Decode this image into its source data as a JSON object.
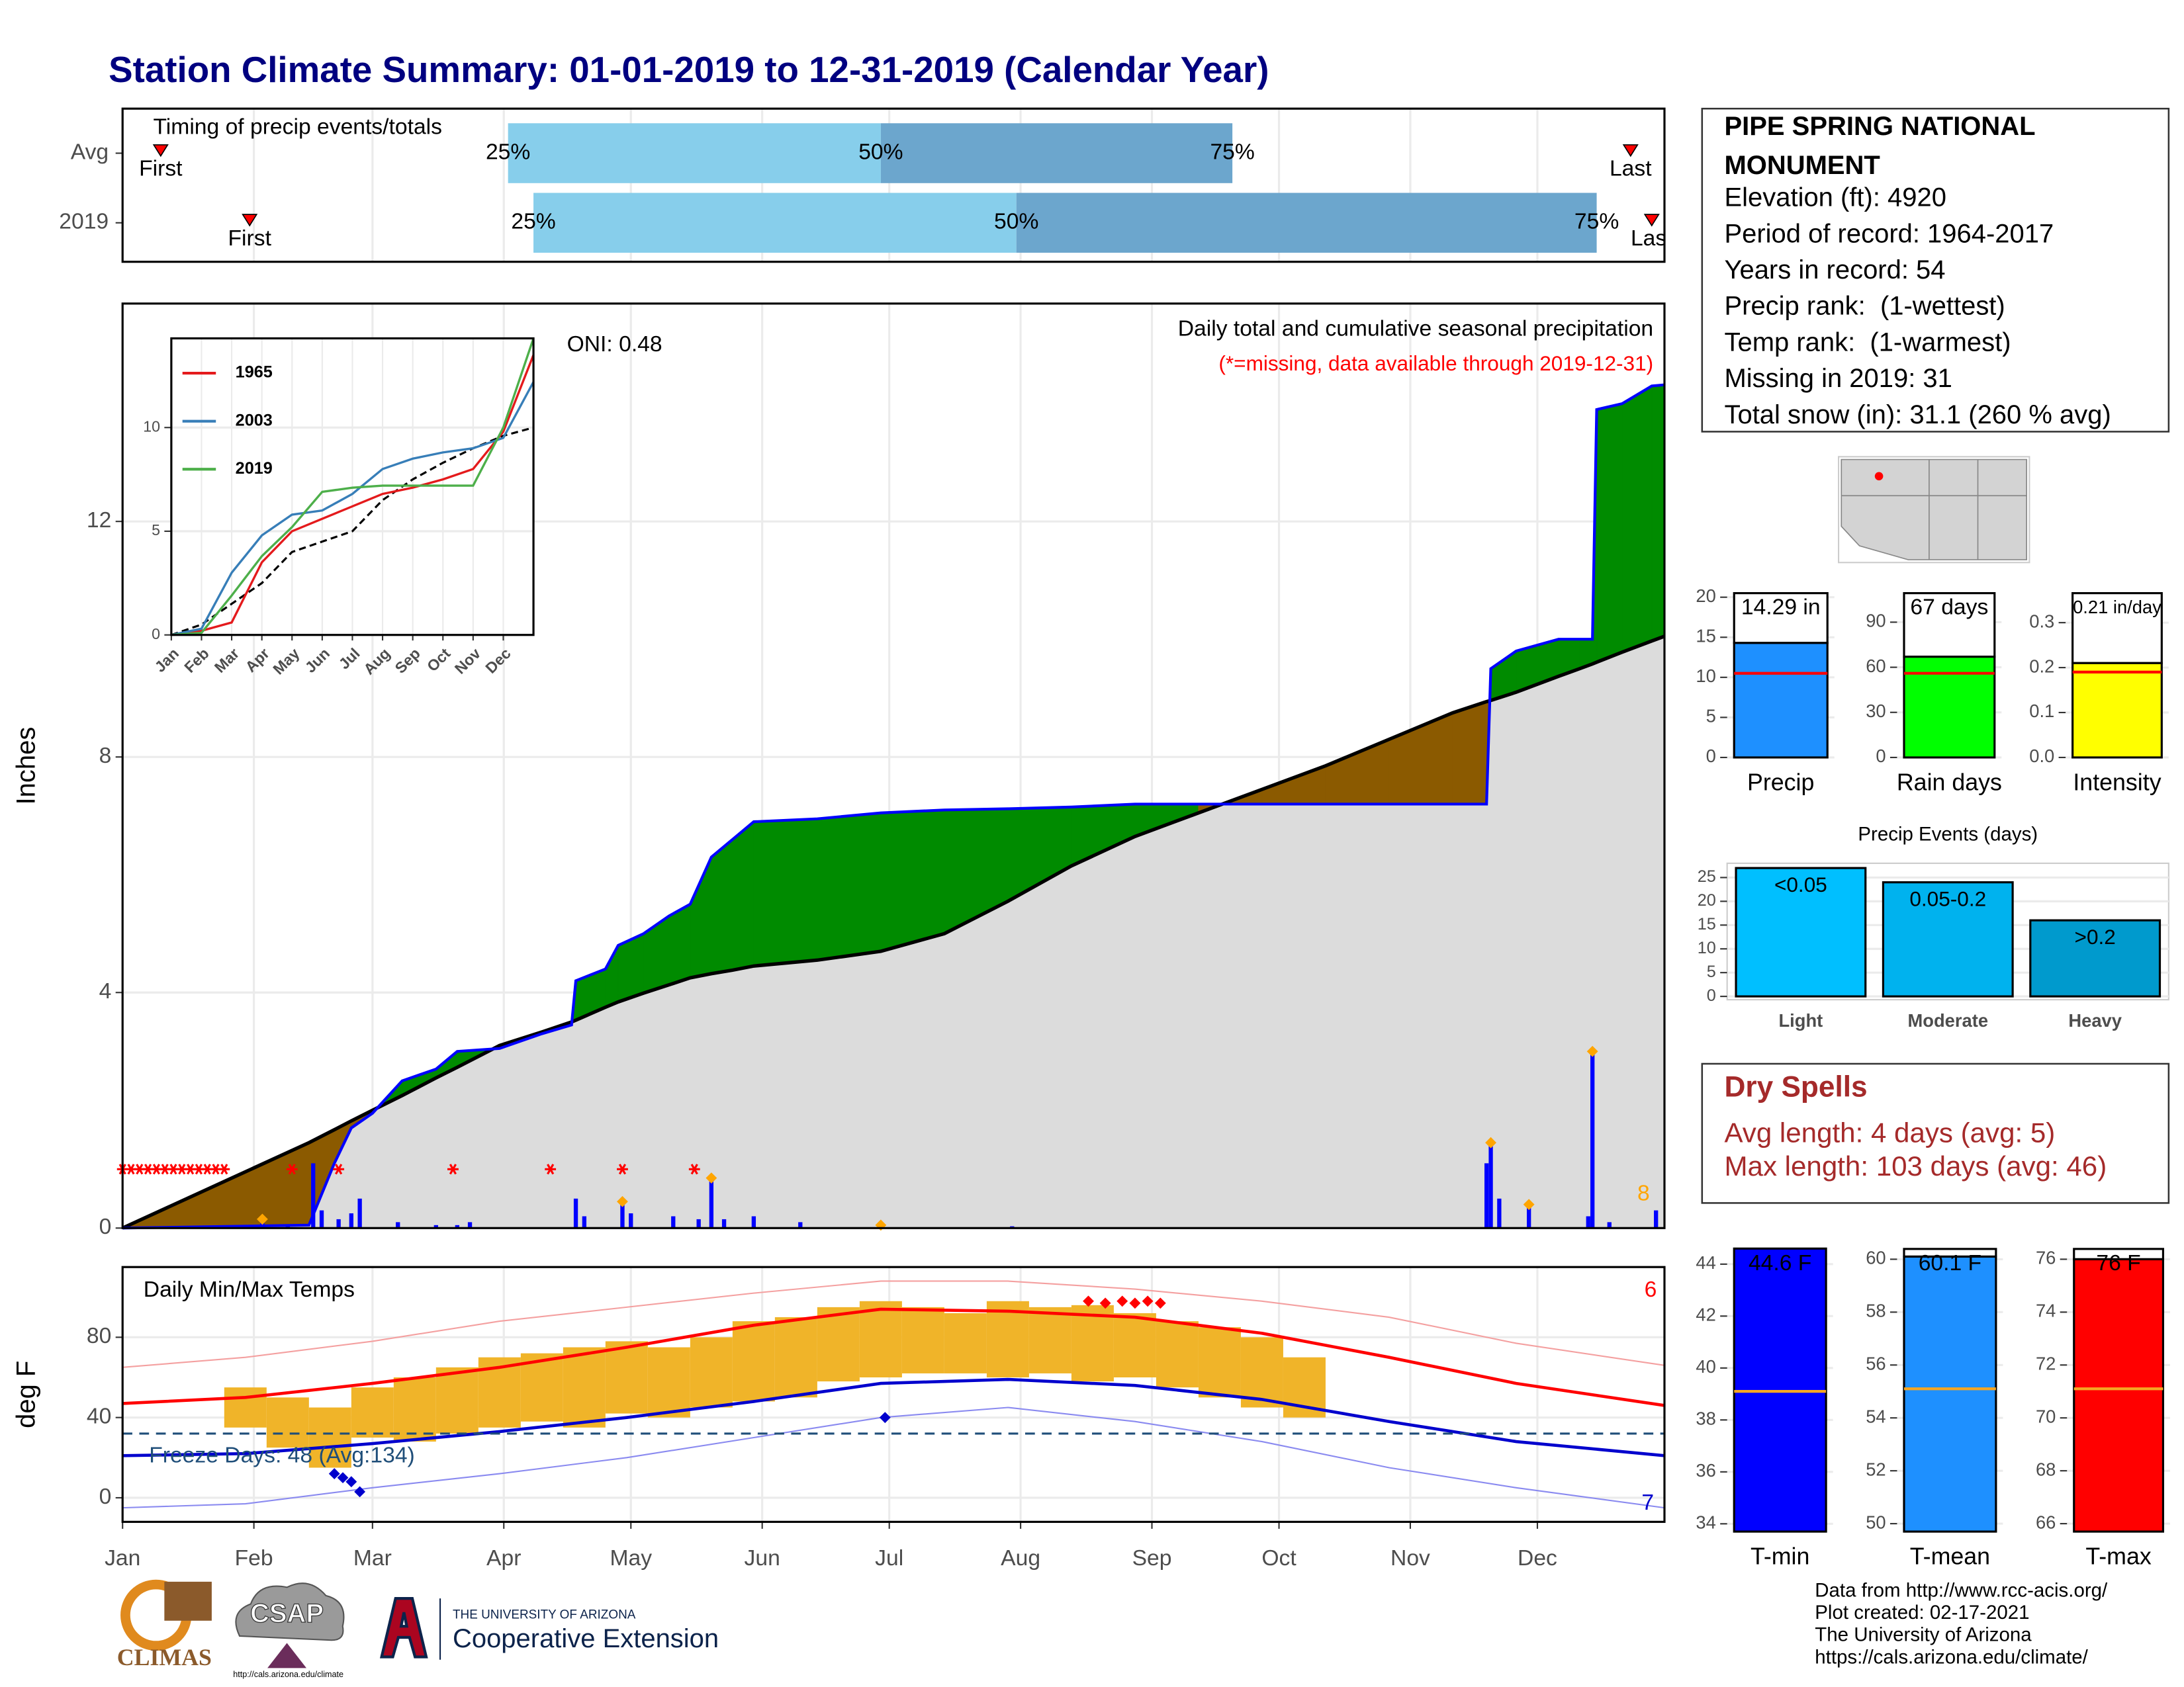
{
  "title": "Station Climate Summary: 01-01-2019 to 12-31-2019 (Calendar Year)",
  "chart_data": [
    {
      "type": "timing",
      "title": "Timing of precip events/totals",
      "categories": [
        "Avg",
        "2019"
      ],
      "labels": {
        "first": "First",
        "last": "Last",
        "q25": "25%",
        "q50": "50%",
        "q75": "75%"
      },
      "rows": [
        {
          "first": 10,
          "q25": 92,
          "q50": 180,
          "q75": 263,
          "last": 357
        },
        {
          "first": 31,
          "q25": 98,
          "q50": 212,
          "q75": 349,
          "last": 362
        }
      ],
      "colors": [
        "#87ceeb",
        "#6ca6cd"
      ],
      "marker_color": "#ff0000",
      "xlim": [
        1,
        365
      ]
    },
    {
      "type": "precip",
      "subtitle": "Daily total and cumulative seasonal precipitation",
      "note": "(*=missing, data available through 2019-12-31)",
      "oni": "ONI: 0.48",
      "annotation": "8",
      "ylabel": "Inches",
      "xlim": [
        1,
        365
      ],
      "ylim": [
        0,
        15.7
      ],
      "yticks": [
        0,
        4,
        8,
        12
      ],
      "grid": true,
      "x": [
        1,
        45,
        51,
        55,
        60,
        67,
        75,
        80,
        90,
        100,
        107,
        108,
        115,
        118,
        124,
        130,
        135,
        140,
        145,
        150,
        165,
        180,
        195,
        210,
        225,
        240,
        255,
        270,
        285,
        300,
        315,
        323,
        324,
        330,
        340,
        345,
        348,
        349,
        355,
        362,
        365
      ],
      "series": [
        {
          "color": "#0000ff",
          "values": [
            0,
            0.05,
            1.1,
            1.7,
            1.95,
            2.5,
            2.7,
            3,
            3.05,
            3.3,
            3.45,
            4.2,
            4.4,
            4.8,
            5,
            5.3,
            5.5,
            6.3,
            6.6,
            6.9,
            6.95,
            7.05,
            7.1,
            7.12,
            7.15,
            7.2,
            7.2,
            7.2,
            7.2,
            7.2,
            7.2,
            7.2,
            9.5,
            9.8,
            10,
            10,
            10,
            13.9,
            14,
            14.3,
            14.32
          ]
        },
        {
          "color": "#000000",
          "fill_color": "#dcdcdc",
          "values": [
            0,
            1.45,
            1.67,
            1.82,
            2,
            2.25,
            2.55,
            2.73,
            3.1,
            3.33,
            3.5,
            3.53,
            3.75,
            3.84,
            3.99,
            4.13,
            4.25,
            4.32,
            4.38,
            4.45,
            4.55,
            4.7,
            5,
            5.55,
            6.15,
            6.65,
            7.05,
            7.45,
            7.85,
            8.3,
            8.75,
            8.94,
            8.96,
            9.1,
            9.37,
            9.5,
            9.58,
            9.61,
            9.78,
            9.97,
            10.05
          ]
        }
      ],
      "above_color": "#008b00",
      "below_color": "#8b5a00",
      "bars_x": [
        34,
        40,
        46,
        48,
        52,
        55,
        57,
        66,
        75,
        80,
        83,
        108,
        110,
        119,
        121,
        131,
        137,
        140,
        143,
        150,
        161,
        180,
        211,
        323,
        324,
        326,
        333,
        347,
        348,
        352,
        363
      ],
      "bars": [
        0.1,
        0.05,
        1.1,
        0.3,
        0.15,
        0.25,
        0.5,
        0.1,
        0.05,
        0.05,
        0.1,
        0.5,
        0.2,
        0.4,
        0.25,
        0.2,
        0.15,
        0.8,
        0.15,
        0.2,
        0.1,
        0.05,
        0.03,
        1.1,
        1.4,
        0.5,
        0.35,
        0.2,
        3,
        0.1,
        0.3
      ],
      "bar_color": "#0000ff",
      "snow_x": [
        34,
        119,
        140,
        180,
        324,
        333,
        348
      ],
      "snow_values": [
        0.15,
        0.45,
        0.85,
        0.05,
        1.45,
        0.4,
        3
      ],
      "snow_color": "#ffa500",
      "missing_x": [
        1,
        3,
        5,
        7,
        9,
        11,
        13,
        15,
        17,
        19,
        21,
        23,
        25,
        41,
        52,
        79,
        102,
        119,
        136
      ],
      "missing_values": [
        1,
        1,
        1,
        1,
        1,
        1,
        1,
        1,
        1,
        1,
        1,
        1,
        1,
        1,
        1,
        1,
        1,
        1,
        1
      ],
      "missing_color": "#ff0000"
    },
    {
      "type": "line",
      "xlim": [
        0,
        12
      ],
      "ylim": [
        0,
        14.3
      ],
      "yticks": [
        0,
        5,
        10
      ],
      "grid": true,
      "xticks": [
        {
          "value": 0,
          "label": "Jan"
        },
        {
          "value": 1,
          "label": "Feb"
        },
        {
          "value": 2,
          "label": "Mar"
        },
        {
          "value": 3,
          "label": "Apr"
        },
        {
          "value": 4,
          "label": "May"
        },
        {
          "value": 5,
          "label": "Jun"
        },
        {
          "value": 6,
          "label": "Jul"
        },
        {
          "value": 7,
          "label": "Aug"
        },
        {
          "value": 8,
          "label": "Sep"
        },
        {
          "value": 9,
          "label": "Oct"
        },
        {
          "value": 10,
          "label": "Nov"
        },
        {
          "value": 11,
          "label": "Dec"
        }
      ],
      "x": [
        0,
        1,
        2,
        3,
        4,
        5,
        6,
        7,
        8,
        9,
        10,
        11,
        12
      ],
      "series": [
        {
          "name": "1965",
          "color": "#e41a1c",
          "values": [
            0,
            0.2,
            0.6,
            3.5,
            5,
            5.6,
            6.2,
            6.8,
            7.1,
            7.5,
            8,
            9.8,
            13.5
          ]
        },
        {
          "name": "2003",
          "color": "#377eb8",
          "values": [
            0,
            0.3,
            3,
            4.8,
            5.8,
            6,
            6.8,
            8,
            8.5,
            8.8,
            9,
            9.5,
            12.2
          ]
        },
        {
          "name": "2019",
          "color": "#4daf4a",
          "values": [
            0,
            0.1,
            1.9,
            3.8,
            5.2,
            6.9,
            7.1,
            7.2,
            7.2,
            7.2,
            7.2,
            10,
            14.3
          ]
        }
      ],
      "avg": {
        "color": "#000000",
        "values": [
          0,
          0.5,
          1.5,
          2.5,
          4,
          4.5,
          5,
          6.5,
          7.5,
          8.3,
          9,
          9.6,
          10
        ]
      }
    },
    {
      "type": "temps",
      "title": "Daily Min/Max Temps",
      "ylabel": "deg F",
      "freeze_label": "Freeze Days: 48 (Avg:134)",
      "annotation_high": "6",
      "annotation_low": "7",
      "freeze_line": 32,
      "xlim": [
        1,
        365
      ],
      "xticks": [
        {
          "value": 1,
          "label": "Jan"
        },
        {
          "value": 32,
          "label": "Feb"
        },
        {
          "value": 60,
          "label": "Mar"
        },
        {
          "value": 91,
          "label": "Apr"
        },
        {
          "value": 121,
          "label": "May"
        },
        {
          "value": 152,
          "label": "Jun"
        },
        {
          "value": 182,
          "label": "Jul"
        },
        {
          "value": 213,
          "label": "Aug"
        },
        {
          "value": 244,
          "label": "Sep"
        },
        {
          "value": 274,
          "label": "Oct"
        },
        {
          "value": 305,
          "label": "Nov"
        },
        {
          "value": 335,
          "label": "Dec"
        }
      ],
      "ylim": [
        -12,
        115
      ],
      "yticks": [
        0,
        40,
        80
      ],
      "grid": true,
      "x": [
        1,
        30,
        60,
        90,
        120,
        150,
        180,
        210,
        240,
        270,
        300,
        330,
        365
      ],
      "normal_max": [
        47,
        50,
        57,
        65,
        75,
        86,
        94,
        93,
        90,
        82,
        70,
        57,
        46
      ],
      "normal_min": [
        21,
        22,
        27,
        33,
        40,
        48,
        57,
        59,
        56,
        49,
        38,
        28,
        21
      ],
      "record_max": [
        65,
        70,
        78,
        88,
        95,
        102,
        108,
        108,
        104,
        98,
        90,
        77,
        66
      ],
      "record_min": [
        -5,
        -3,
        5,
        12,
        20,
        30,
        40,
        45,
        38,
        28,
        15,
        5,
        -5
      ],
      "obs_x": [
        30,
        40,
        50,
        60,
        70,
        80,
        90,
        100,
        110,
        120,
        130,
        140,
        150,
        160,
        170,
        180,
        190,
        200,
        210,
        220,
        230,
        240,
        250,
        260,
        270,
        280
      ],
      "obs_min": [
        35,
        25,
        15,
        30,
        28,
        32,
        35,
        38,
        35,
        42,
        40,
        45,
        48,
        50,
        58,
        60,
        62,
        62,
        60,
        62,
        58,
        60,
        55,
        50,
        45,
        40
      ],
      "obs_max": [
        55,
        50,
        45,
        55,
        60,
        65,
        70,
        72,
        75,
        78,
        75,
        80,
        88,
        90,
        95,
        98,
        95,
        92,
        98,
        95,
        96,
        92,
        88,
        85,
        80,
        70
      ],
      "obs_color": "#f0b429",
      "max_color": "#ff0000",
      "min_color": "#0000cd",
      "record_high_x": [
        229,
        233,
        237,
        240,
        243,
        246
      ],
      "record_high_values": [
        98,
        97,
        98,
        97,
        98,
        97
      ],
      "record_low_x": [
        51,
        53,
        55,
        57,
        181
      ],
      "record_low_values": [
        12,
        10,
        8,
        3,
        40
      ]
    },
    {
      "type": "summary_bar",
      "categories": [
        "Precip"
      ],
      "values": [
        14.29
      ],
      "value_labels": [
        "14.29 in"
      ],
      "avg": 10.5,
      "color": "#1e90ff",
      "avg_color": "#ff0000",
      "ylim": [
        0,
        21.2
      ],
      "yticks": [
        0,
        5,
        10,
        15,
        20
      ],
      "grid": true
    },
    {
      "type": "summary_bar",
      "categories": [
        "Rain days"
      ],
      "values": [
        67
      ],
      "value_labels": [
        "67 days"
      ],
      "avg": 56,
      "color": "#00ff00",
      "avg_color": "#ff0000",
      "ylim": [
        0,
        113
      ],
      "yticks": [
        0,
        30,
        60,
        90
      ],
      "grid": true
    },
    {
      "type": "summary_bar",
      "categories": [
        "Intensity"
      ],
      "values": [
        0.21
      ],
      "value_labels": [
        "0.21 in/day"
      ],
      "avg": 0.19,
      "color": "#ffff00",
      "avg_color": "#ff0000",
      "ylim": [
        0,
        0.378
      ],
      "yticks": [
        {
          "value": 0,
          "label": "0.0"
        },
        0.1,
        0.2,
        0.3
      ],
      "grid": true
    },
    {
      "type": "bar",
      "title": "Precip Events (days)",
      "categories": [
        "Light",
        "Moderate",
        "Heavy"
      ],
      "values": [
        27,
        24,
        16
      ],
      "bar_labels": [
        "<0.05",
        "0.05-0.2",
        ">0.2"
      ],
      "colors": [
        "#00bfff",
        "#00b2ee",
        "#009acd"
      ],
      "ylim": [
        -0.7,
        28
      ],
      "yticks": [
        0,
        5,
        10,
        15,
        20,
        25
      ],
      "grid": true
    },
    {
      "type": "summary_bar",
      "categories": [
        "T-min"
      ],
      "values": [
        44.6
      ],
      "value_labels": [
        "44.6 F"
      ],
      "avg": 39.1,
      "color": "#0000ff",
      "avg_color": "#f5a623",
      "ylim": [
        33.7,
        44.8
      ],
      "yticks": [
        34,
        36,
        38,
        40,
        42,
        44
      ],
      "grid": true
    },
    {
      "type": "summary_bar",
      "categories": [
        "T-mean"
      ],
      "values": [
        60.1
      ],
      "value_labels": [
        "60.1 F"
      ],
      "avg": 55.1,
      "color": "#1e90ff",
      "avg_color": "#f5a623",
      "ylim": [
        49.7,
        60.6
      ],
      "yticks": [
        50,
        52,
        54,
        56,
        58,
        60
      ],
      "grid": true
    },
    {
      "type": "summary_bar",
      "categories": [
        "T-max"
      ],
      "values": [
        76
      ],
      "value_labels": [
        "76 F"
      ],
      "avg": 71.1,
      "color": "#ff0000",
      "avg_color": "#f5a623",
      "ylim": [
        65.7,
        76.6
      ],
      "yticks": [
        66,
        68,
        70,
        72,
        74,
        76
      ],
      "grid": true
    }
  ],
  "station": {
    "name_lines": [
      "PIPE SPRING NATIONAL",
      "MONUMENT"
    ],
    "lines": [
      "Elevation (ft): 4920",
      "Period of record: 1964-2017",
      "Years in record: 54",
      "Precip rank:  (1-wettest)",
      "Temp rank:  (1-warmest)",
      "Missing in 2019: 31",
      "Total snow (in): 31.1 (260 % avg)"
    ]
  },
  "dry_spells": {
    "title": "Dry Spells",
    "lines": [
      "Avg length: 4 days (avg: 5)",
      "Max length: 103 days (avg: 46)"
    ]
  },
  "footer": {
    "lines": [
      "Data from http://www.rcc-acis.org/",
      "Plot created: 02-17-2021",
      "The University of Arizona",
      "https://cals.arizona.edu/climate/"
    ]
  },
  "logos": {
    "climas": "CLIMAS",
    "csap": "CSAP",
    "csap_url": "http://cals.arizona.edu/climate",
    "ua": "THE UNIVERSITY OF ARIZONA",
    "coop": "Cooperative Extension"
  }
}
